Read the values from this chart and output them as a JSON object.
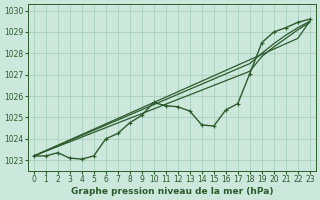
{
  "title": "Graphe pression niveau de la mer (hPa)",
  "bg_color": "#cce8dc",
  "grid_color": "#aacfbe",
  "line_color": "#2d5a2d",
  "marker_color": "#2d5a2d",
  "xlim": [
    -0.5,
    23.5
  ],
  "ylim": [
    1022.5,
    1030.3
  ],
  "yticks": [
    1023,
    1024,
    1025,
    1026,
    1027,
    1028,
    1029,
    1030
  ],
  "xticks": [
    0,
    1,
    2,
    3,
    4,
    5,
    6,
    7,
    8,
    9,
    10,
    11,
    12,
    13,
    14,
    15,
    16,
    17,
    18,
    19,
    20,
    21,
    22,
    23
  ],
  "series": [
    {
      "y": [
        1023.2,
        1023.2,
        1023.35,
        1023.1,
        1023.05,
        1023.2,
        1024.0,
        1024.25,
        1024.75,
        1025.1,
        1025.7,
        1025.55,
        1025.5,
        1025.3,
        1024.65,
        1024.6,
        1025.35,
        1025.65,
        1027.05,
        1028.5,
        1029.0,
        1029.2,
        1029.45,
        1029.6
      ],
      "marker": true,
      "lw": 1.0,
      "zorder": 4
    },
    {
      "y": [
        1023.2,
        1023.45,
        1023.7,
        1023.95,
        1024.2,
        1024.45,
        1024.7,
        1024.95,
        1025.2,
        1025.45,
        1025.7,
        1025.95,
        1026.2,
        1026.45,
        1026.7,
        1026.95,
        1027.2,
        1027.45,
        1027.7,
        1027.95,
        1028.2,
        1028.45,
        1028.7,
        1029.5
      ],
      "marker": false,
      "lw": 0.9,
      "zorder": 2
    },
    {
      "y": [
        1023.2,
        1023.42,
        1023.64,
        1023.86,
        1024.08,
        1024.3,
        1024.52,
        1024.74,
        1024.96,
        1025.18,
        1025.4,
        1025.62,
        1025.84,
        1026.06,
        1026.28,
        1026.5,
        1026.72,
        1026.94,
        1027.16,
        1027.85,
        1028.3,
        1028.7,
        1029.1,
        1029.45
      ],
      "marker": false,
      "lw": 0.9,
      "zorder": 2
    },
    {
      "y": [
        1023.2,
        1023.44,
        1023.68,
        1023.92,
        1024.16,
        1024.4,
        1024.64,
        1024.88,
        1025.12,
        1025.36,
        1025.6,
        1025.84,
        1026.08,
        1026.32,
        1026.56,
        1026.8,
        1027.04,
        1027.28,
        1027.52,
        1028.0,
        1028.45,
        1028.85,
        1029.2,
        1029.5
      ],
      "marker": false,
      "lw": 0.9,
      "zorder": 2
    }
  ],
  "marker_size": 3.5,
  "tick_fontsize": 5.5,
  "xlabel_fontsize": 6.5
}
